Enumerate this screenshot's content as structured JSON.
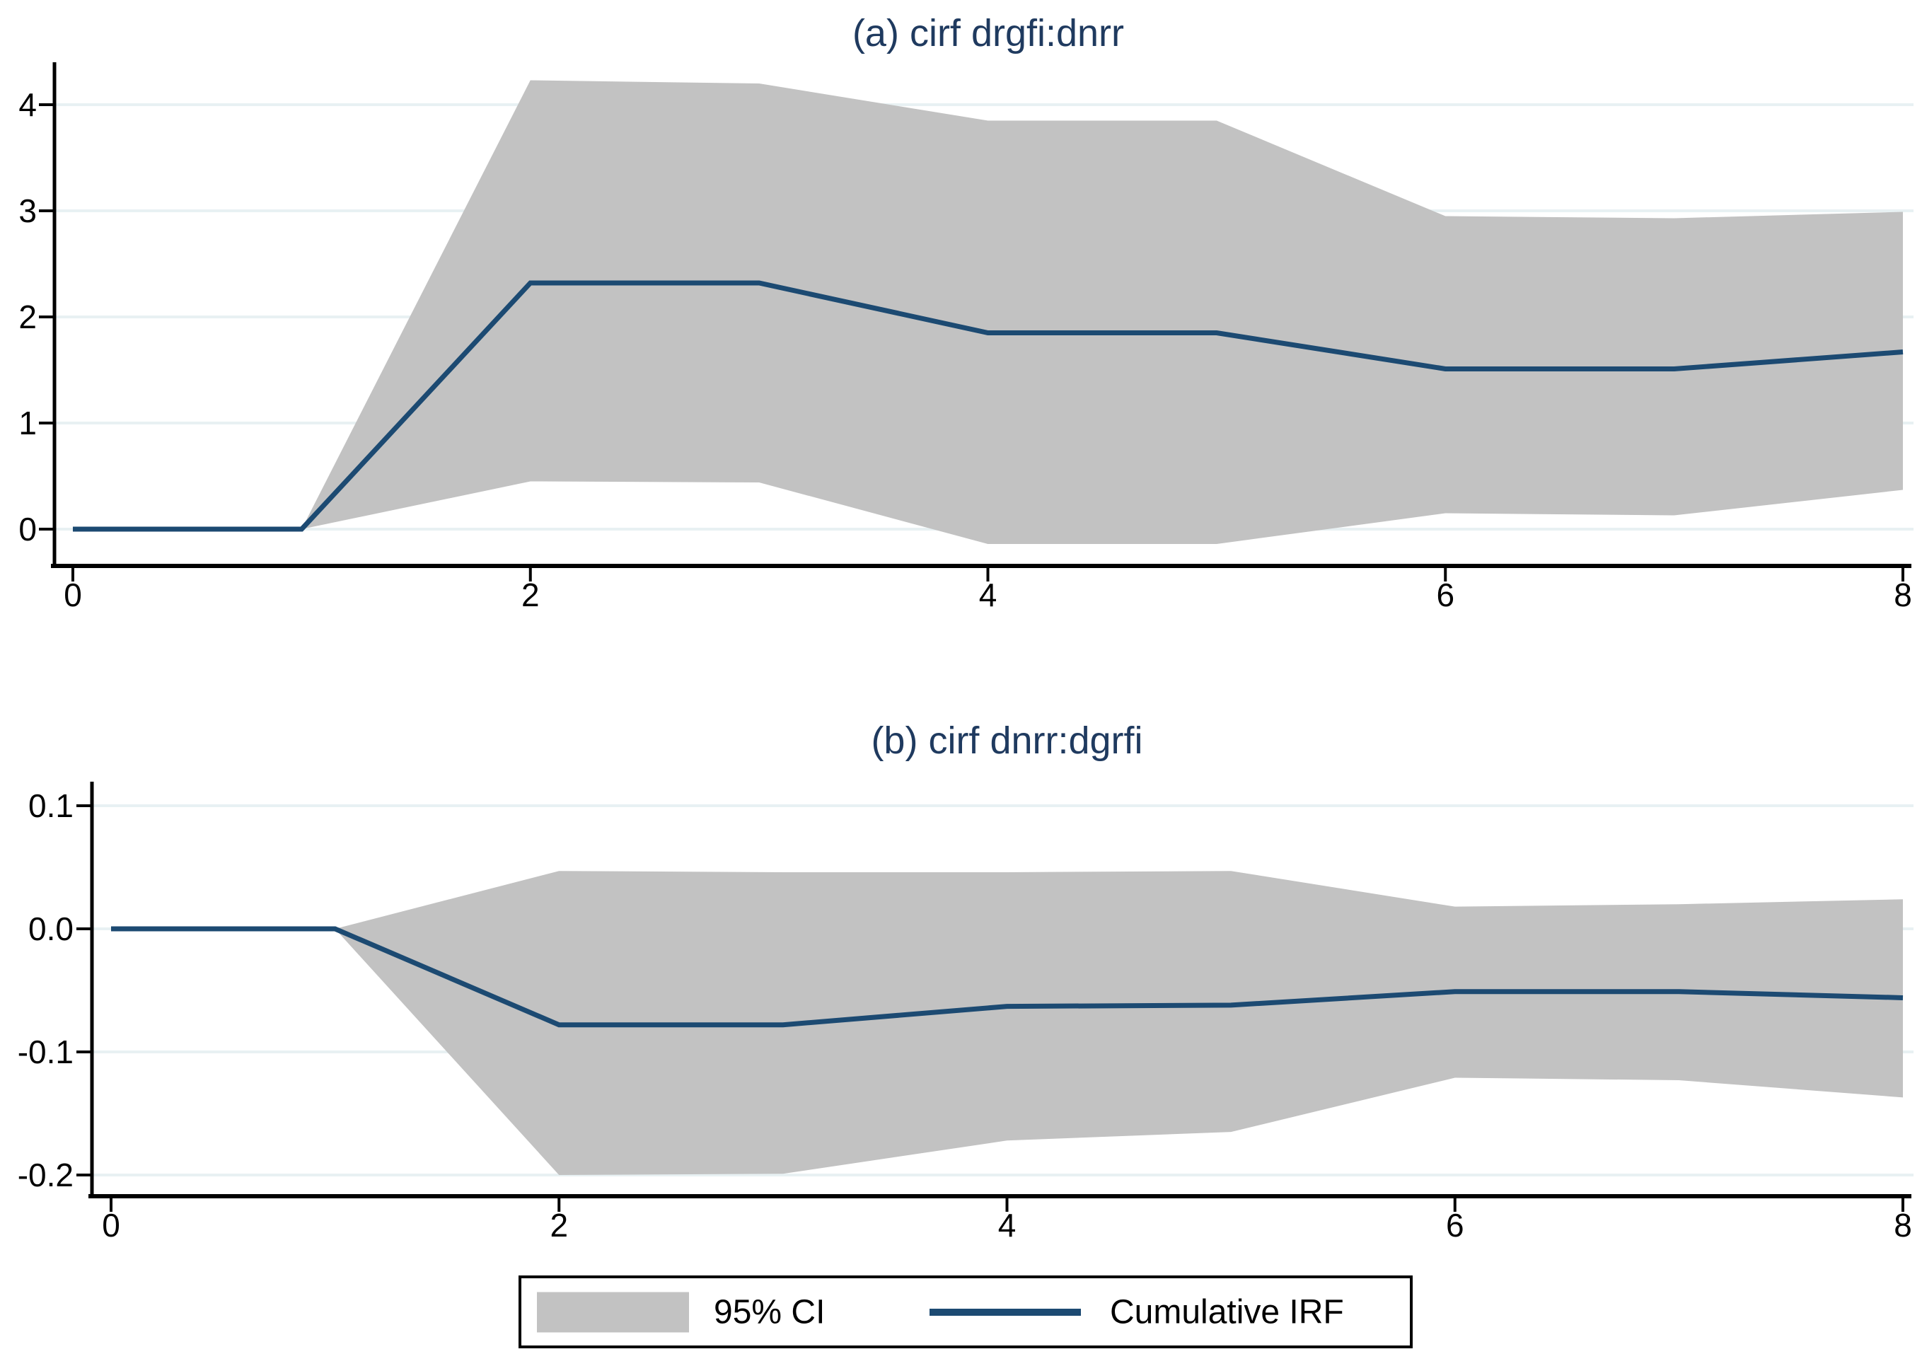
{
  "figure": {
    "background": "#ffffff",
    "colors": {
      "band": "#c2c2c2",
      "line": "#1c4a72",
      "title": "#1f3a5f",
      "grid": "#e8f1f3",
      "axis": "#000000",
      "tick_text": "#000000"
    },
    "legend": {
      "items": [
        {
          "label": "95% CI",
          "swatch": "band"
        },
        {
          "label": "Cumulative IRF",
          "swatch": "line"
        }
      ]
    }
  },
  "chart_data": [
    {
      "type": "area",
      "panel": "a",
      "title": "(a) cirf drgfi:dnrr",
      "x": [
        0,
        1,
        2,
        3,
        4,
        5,
        6,
        7,
        8
      ],
      "series": [
        {
          "name": "Cumulative IRF",
          "role": "line",
          "values": [
            0,
            0,
            2.32,
            2.32,
            1.85,
            1.85,
            1.51,
            1.51,
            1.67
          ]
        },
        {
          "name": "95% CI upper",
          "role": "band-upper",
          "values": [
            0,
            0,
            4.23,
            4.2,
            3.85,
            3.85,
            2.95,
            2.93,
            2.99
          ]
        },
        {
          "name": "95% CI lower",
          "role": "band-lower",
          "values": [
            0,
            0,
            0.45,
            0.44,
            -0.14,
            -0.14,
            0.15,
            0.13,
            0.37
          ]
        }
      ],
      "xlabel": "",
      "ylabel": "",
      "ylim": [
        -0.35,
        4.4
      ],
      "xlim": [
        0,
        8
      ],
      "yticks": [
        0,
        1,
        2,
        3,
        4
      ],
      "ytick_labels": [
        "0",
        "1",
        "2",
        "3",
        "4"
      ],
      "xticks": [
        0,
        2,
        4,
        6,
        8
      ],
      "xtick_labels": [
        "0",
        "2",
        "4",
        "6",
        "8"
      ],
      "grid": "horizontal",
      "legend_position": "none"
    },
    {
      "type": "area",
      "panel": "b",
      "title": "(b) cirf dnrr:dgrfi",
      "x": [
        0,
        1,
        2,
        3,
        4,
        5,
        6,
        7,
        8
      ],
      "series": [
        {
          "name": "Cumulative IRF",
          "role": "line",
          "values": [
            0,
            0,
            -0.078,
            -0.078,
            -0.063,
            -0.062,
            -0.051,
            -0.051,
            -0.056
          ]
        },
        {
          "name": "95% CI upper",
          "role": "band-upper",
          "values": [
            0,
            0,
            0.047,
            0.046,
            0.046,
            0.047,
            0.018,
            0.02,
            0.024
          ]
        },
        {
          "name": "95% CI lower",
          "role": "band-lower",
          "values": [
            0,
            0,
            -0.2,
            -0.199,
            -0.172,
            -0.165,
            -0.121,
            -0.123,
            -0.137
          ]
        }
      ],
      "xlabel": "",
      "ylabel": "",
      "ylim": [
        -0.217,
        0.12
      ],
      "xlim": [
        0,
        8
      ],
      "yticks": [
        0.1,
        0.0,
        -0.1,
        -0.2
      ],
      "ytick_labels": [
        "0.1",
        "0.0",
        "-0.1",
        "-0.2"
      ],
      "xticks": [
        0,
        2,
        4,
        6,
        8
      ],
      "xtick_labels": [
        "0",
        "2",
        "4",
        "6",
        "8"
      ],
      "grid": "horizontal",
      "legend_position": "none"
    }
  ]
}
